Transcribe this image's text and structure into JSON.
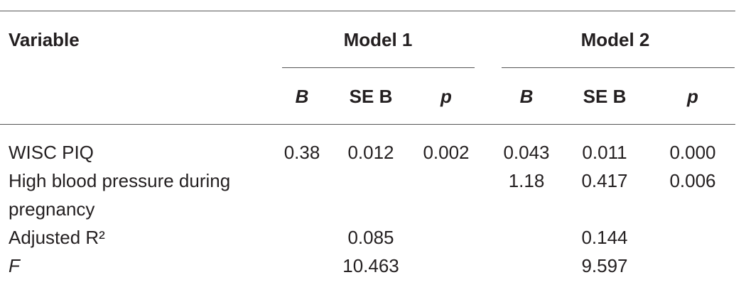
{
  "table": {
    "header": {
      "variable": "Variable",
      "groups": [
        "Model 1",
        "Model 2"
      ],
      "columns": [
        "B",
        "SE B",
        "p",
        "B",
        "SE B",
        "p"
      ]
    },
    "rows": [
      {
        "label": "WISC PIQ",
        "cells": [
          "0.38",
          "0.012",
          "0.002",
          "0.043",
          "0.011",
          "0.000"
        ]
      },
      {
        "label": "High blood pressure during pregnancy",
        "cells": [
          null,
          null,
          null,
          "1.18",
          "0.417",
          "0.006"
        ]
      },
      {
        "label": "Adjusted R²",
        "cells": [
          null,
          "0.085",
          null,
          null,
          "0.144",
          null
        ]
      },
      {
        "label": "F",
        "cells": [
          null,
          "10.463",
          null,
          null,
          "9.597",
          null
        ]
      }
    ]
  }
}
